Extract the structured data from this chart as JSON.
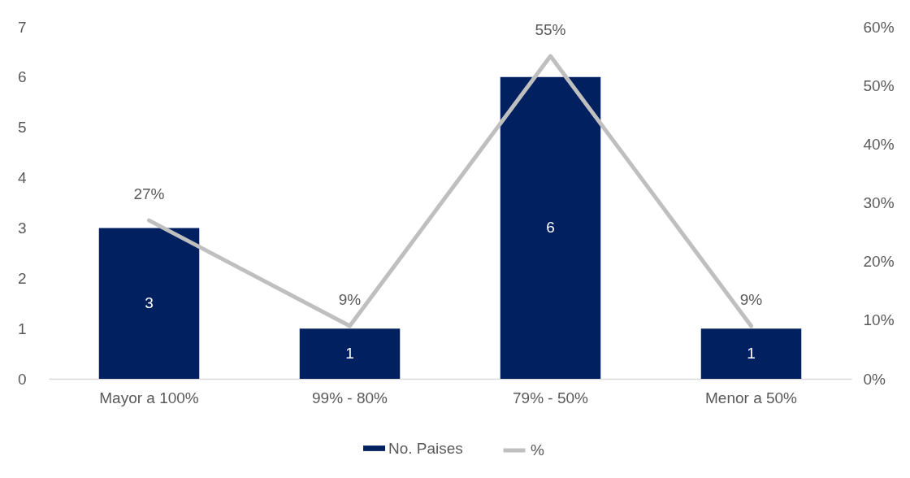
{
  "chart_data": {
    "type": "bar",
    "categories": [
      "Mayor a 100%",
      "99% - 80%",
      "79% - 50%",
      "Menor a 50%"
    ],
    "series": [
      {
        "name": "No. Paises",
        "color": "#002060",
        "values": [
          3,
          1,
          6,
          1
        ],
        "value_labels": [
          "3",
          "1",
          "6",
          "1"
        ]
      },
      {
        "name": "%",
        "type": "line",
        "axis": "y2",
        "color": "#bfbfbf",
        "values": [
          27,
          9,
          55,
          9
        ],
        "value_labels": [
          "27%",
          "9%",
          "55%",
          "9%"
        ],
        "line_style": "solid"
      }
    ],
    "ylim": [
      0,
      7
    ],
    "yticks": [
      0,
      1,
      2,
      3,
      4,
      5,
      6,
      7
    ],
    "y2lim": [
      0,
      60
    ],
    "y2ticks": [
      {
        "value": 0,
        "label": "0%"
      },
      {
        "value": 10,
        "label": "10%"
      },
      {
        "value": 20,
        "label": "20%"
      },
      {
        "value": 30,
        "label": "30%"
      },
      {
        "value": 40,
        "label": "40%"
      },
      {
        "value": 50,
        "label": "50%"
      },
      {
        "value": 60,
        "label": "60%"
      }
    ],
    "legend": "bottom",
    "grid": false,
    "marker": "none"
  }
}
